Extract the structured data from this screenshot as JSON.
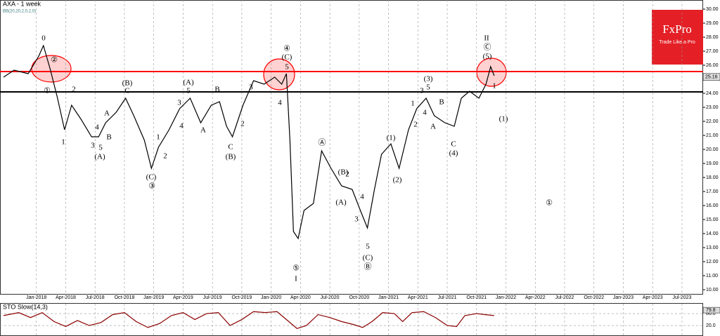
{
  "logo": {
    "name": "FxPro",
    "tagline": "Trade Like a Pro"
  },
  "chart_data": [
    {
      "type": "line",
      "title": "AXA - 1 week",
      "subtitle": "BB(20,20,2,0,2,0)",
      "x": [
        2017.72,
        2017.81,
        2017.93,
        2018.02,
        2018.06,
        2018.12,
        2018.18,
        2018.24,
        2018.3,
        2018.38,
        2018.47,
        2018.53,
        2018.59,
        2018.68,
        2018.76,
        2018.83,
        2018.92,
        2018.98,
        2019.04,
        2019.13,
        2019.22,
        2019.31,
        2019.4,
        2019.49,
        2019.56,
        2019.62,
        2019.67,
        2019.76,
        2019.85,
        2019.94,
        2020.03,
        2020.09,
        2020.13,
        2020.16,
        2020.19,
        2020.23,
        2020.28,
        2020.36,
        2020.43,
        2020.51,
        2020.6,
        2020.69,
        2020.76,
        2020.82,
        2020.88,
        2020.94,
        2021.02,
        2021.09,
        2021.17,
        2021.24,
        2021.32,
        2021.39,
        2021.48,
        2021.56,
        2021.62,
        2021.69,
        2021.77,
        2021.83,
        2021.87,
        2021.9
      ],
      "series": [
        {
          "color": "#000000",
          "values": [
            25.15,
            25.65,
            25.4,
            26.65,
            27.4,
            25.65,
            23.65,
            21.4,
            23.15,
            22.15,
            20.9,
            20.9,
            21.9,
            22.65,
            23.65,
            22.4,
            20.65,
            18.65,
            20.15,
            21.4,
            22.9,
            23.65,
            21.9,
            23.15,
            23.4,
            21.65,
            20.9,
            23.15,
            24.9,
            24.65,
            25.15,
            24.65,
            25.4,
            20.65,
            14.15,
            13.65,
            15.65,
            16.15,
            19.9,
            18.65,
            17.4,
            17.15,
            15.65,
            14.4,
            17.15,
            19.65,
            20.4,
            18.65,
            21.4,
            22.9,
            23.65,
            22.4,
            21.9,
            21.65,
            23.65,
            24.15,
            23.65,
            24.65,
            25.9,
            25.25
          ]
        }
      ],
      "hlines": [
        {
          "value": 25.55,
          "color": "#ff0000"
        },
        {
          "value": 24.1,
          "color": "#000000"
        }
      ],
      "last_price": {
        "value": 25.16,
        "label": "25.16"
      },
      "annotations": [
        "0",
        "②",
        "①",
        "2",
        "1",
        "3",
        "4",
        "5",
        "(A)",
        "A",
        "B",
        "(B)",
        "C",
        "1",
        "2",
        "(C)",
        "③",
        "(A)",
        "3",
        "5",
        "4",
        "A",
        "B",
        "2",
        "C",
        "(B)",
        "3",
        "5",
        "④",
        "(C)",
        "4",
        "⑤",
        "I",
        "Ⓐ",
        "(B)",
        "2",
        "(A)",
        "4",
        "3",
        "5",
        "(C)",
        "Ⓑ",
        "(1)",
        "(2)",
        "1",
        "2",
        "(3)",
        "3",
        "5",
        "4",
        "A",
        "B",
        "C",
        "(4)",
        "II",
        "Ⓒ",
        "(5)",
        "1",
        "(1)",
        "①"
      ],
      "xlim": [
        2017.69,
        2023.68
      ],
      "ylim": [
        9.65,
        30.65
      ],
      "xticks": [
        {
          "value": 2018,
          "label": "Jan-2018"
        },
        {
          "value": 2018.25,
          "label": "Apr-2018"
        },
        {
          "value": 2018.5,
          "label": "Jul-2018"
        },
        {
          "value": 2018.75,
          "label": "Oct-2018"
        },
        {
          "value": 2019,
          "label": "Jan-2019"
        },
        {
          "value": 2019.25,
          "label": "Apr-2019"
        },
        {
          "value": 2019.5,
          "label": "Jul-2019"
        },
        {
          "value": 2019.75,
          "label": "Oct-2019"
        },
        {
          "value": 2020,
          "label": "Jan-2020"
        },
        {
          "value": 2020.25,
          "label": "Apr-2020"
        },
        {
          "value": 2020.5,
          "label": "Jul-2020"
        },
        {
          "value": 2020.75,
          "label": "Oct-2020"
        },
        {
          "value": 2021,
          "label": "Jan-2021"
        },
        {
          "value": 2021.25,
          "label": "Apr-2021"
        },
        {
          "value": 2021.5,
          "label": "Jul-2021"
        },
        {
          "value": 2021.75,
          "label": "Oct-2021"
        },
        {
          "value": 2022,
          "label": "Jan-2022"
        },
        {
          "value": 2022.25,
          "label": "Apr-2022"
        },
        {
          "value": 2022.5,
          "label": "Jul-2022"
        },
        {
          "value": 2022.75,
          "label": "Oct-2022"
        },
        {
          "value": 2023,
          "label": "Jan-2023"
        },
        {
          "value": 2023.25,
          "label": "Apr-2023"
        },
        {
          "value": 2023.5,
          "label": "Jul-2023"
        }
      ],
      "yticks": [
        {
          "value": 10,
          "label": "10.00"
        },
        {
          "value": 11,
          "label": "11.00"
        },
        {
          "value": 12,
          "label": "12.00"
        },
        {
          "value": 13,
          "label": "13.00"
        },
        {
          "value": 14,
          "label": "14.00"
        },
        {
          "value": 15,
          "label": "15.00"
        },
        {
          "value": 16,
          "label": "16.00"
        },
        {
          "value": 17,
          "label": "17.00"
        },
        {
          "value": 18,
          "label": "18.00"
        },
        {
          "value": 19,
          "label": "19.00"
        },
        {
          "value": 20,
          "label": "20.00"
        },
        {
          "value": 21,
          "label": "21.00"
        },
        {
          "value": 22,
          "label": "22.00"
        },
        {
          "value": 23,
          "label": "23.00"
        },
        {
          "value": 24,
          "label": "24.00"
        },
        {
          "value": 25,
          "label": "25.00"
        },
        {
          "value": 26,
          "label": "26.00"
        },
        {
          "value": 27,
          "label": "27.00"
        },
        {
          "value": 28,
          "label": "28.00"
        },
        {
          "value": 29,
          "label": "29.00"
        },
        {
          "value": 30,
          "label": "30.00"
        }
      ],
      "grid": true
    },
    {
      "type": "line",
      "title": "STO Slow(14,3)",
      "x": [
        2017.72,
        2017.85,
        2017.95,
        2018.05,
        2018.15,
        2018.25,
        2018.35,
        2018.45,
        2018.55,
        2018.65,
        2018.75,
        2018.85,
        2018.95,
        2019.05,
        2019.15,
        2019.25,
        2019.35,
        2019.45,
        2019.55,
        2019.65,
        2019.75,
        2019.85,
        2019.95,
        2020.05,
        2020.15,
        2020.22,
        2020.3,
        2020.4,
        2020.5,
        2020.6,
        2020.7,
        2020.78,
        2020.86,
        2020.95,
        2021.05,
        2021.12,
        2021.2,
        2021.3,
        2021.4,
        2021.5,
        2021.58,
        2021.65,
        2021.75,
        2021.82,
        2021.9
      ],
      "series": [
        {
          "color": "#8b0000",
          "values": [
            70,
            85,
            60,
            85,
            40,
            15,
            45,
            20,
            35,
            75,
            85,
            40,
            10,
            30,
            70,
            85,
            50,
            80,
            85,
            20,
            50,
            90,
            85,
            90,
            40,
            5,
            20,
            75,
            60,
            40,
            25,
            10,
            40,
            85,
            80,
            40,
            85,
            90,
            60,
            20,
            15,
            70,
            80,
            75,
            70
          ]
        }
      ],
      "last_value": {
        "value": 79.8,
        "label": "79.8"
      },
      "xlim": [
        2017.69,
        2023.68
      ],
      "ylim": [
        0,
        100
      ],
      "yticks": [
        {
          "value": 80,
          "label": "80.0"
        },
        {
          "value": 20,
          "label": "20.0"
        }
      ]
    }
  ]
}
